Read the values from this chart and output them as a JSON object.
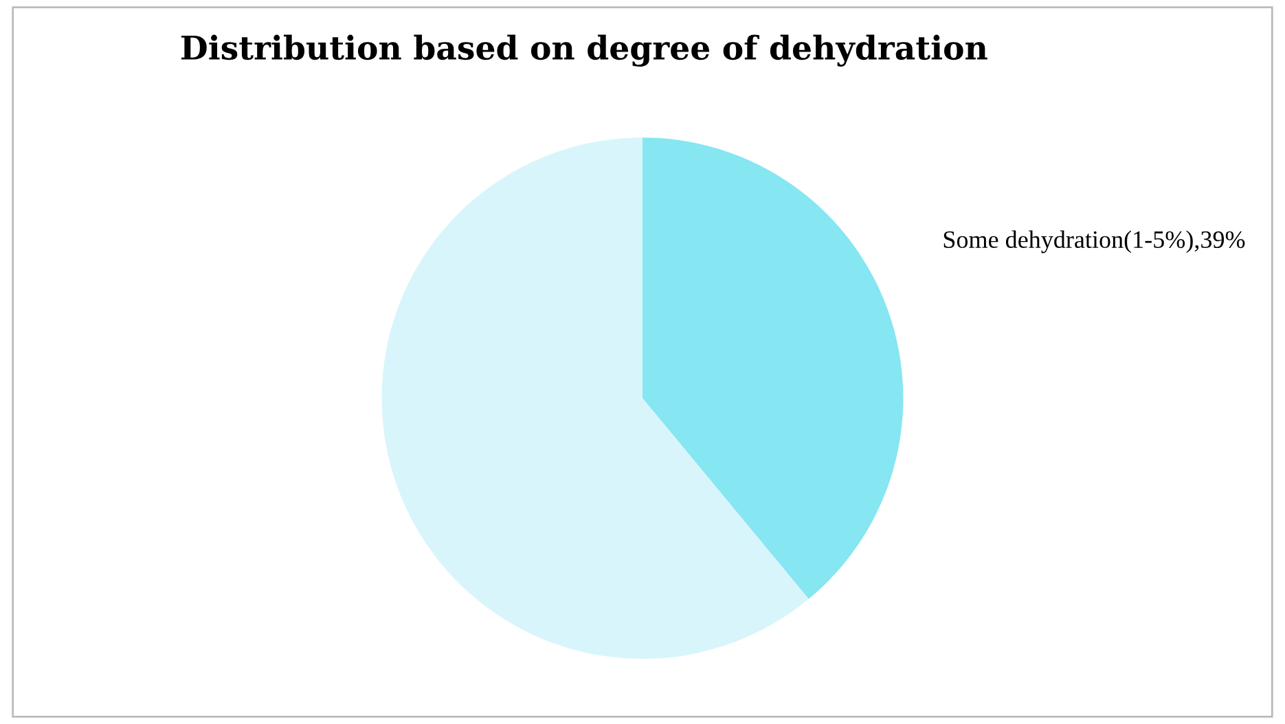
{
  "chart_data": {
    "type": "pie",
    "title": "Distribution based on degree of dehydration",
    "categories": [
      null,
      null
    ],
    "values": [
      39,
      61
    ],
    "colors": [
      "#86e6f2",
      "#d8f5fb"
    ],
    "value_labels": [
      "Some dehydration(1-5%),39%",
      null
    ]
  }
}
